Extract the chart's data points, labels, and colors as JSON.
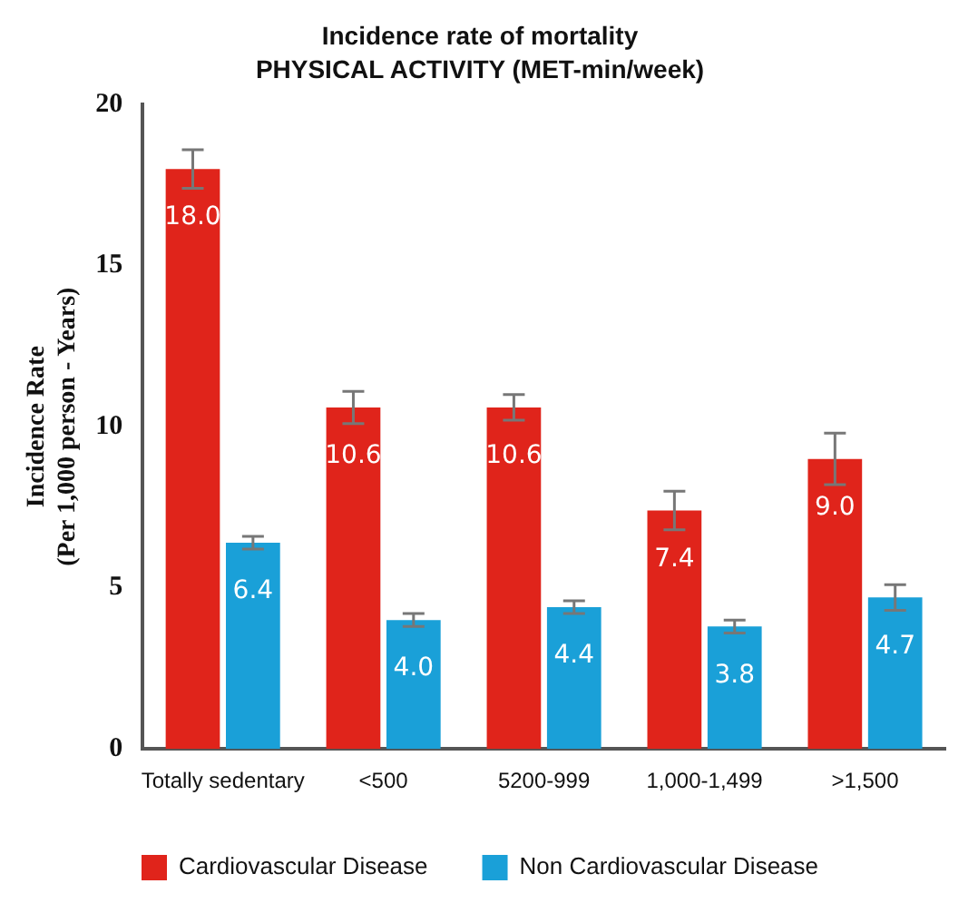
{
  "chart_data": {
    "type": "bar",
    "title": "Incidence rate of mortality",
    "subtitle": "PHYSICAL ACTIVITY (MET-min/week)",
    "ylabel": "Incidence Rate\n(Per 1,000 person - Years)",
    "categories": [
      "Totally sedentary",
      "<500",
      "5200-999",
      "1,000-1,499",
      ">1,500"
    ],
    "series": [
      {
        "name": "Cardiovascular Disease",
        "color": "#e0241b",
        "values": [
          18.0,
          10.6,
          10.6,
          7.4,
          9.0
        ],
        "value_labels": [
          "18.0",
          "10.6",
          "10.6",
          "7.4",
          "9.0"
        ],
        "errors": [
          0.6,
          0.5,
          0.4,
          0.6,
          0.8
        ]
      },
      {
        "name": "Non Cardiovascular Disease",
        "color": "#1aa0d8",
        "values": [
          6.4,
          4.0,
          4.4,
          3.8,
          4.7
        ],
        "value_labels": [
          "6.4",
          "4.0",
          "4.4",
          "3.8",
          "4.7"
        ],
        "errors": [
          0.2,
          0.2,
          0.2,
          0.2,
          0.4
        ]
      }
    ],
    "ylim": [
      0,
      20
    ],
    "yticks": [
      0,
      5,
      10,
      15,
      20
    ],
    "grid": false,
    "legend": "bottom"
  }
}
